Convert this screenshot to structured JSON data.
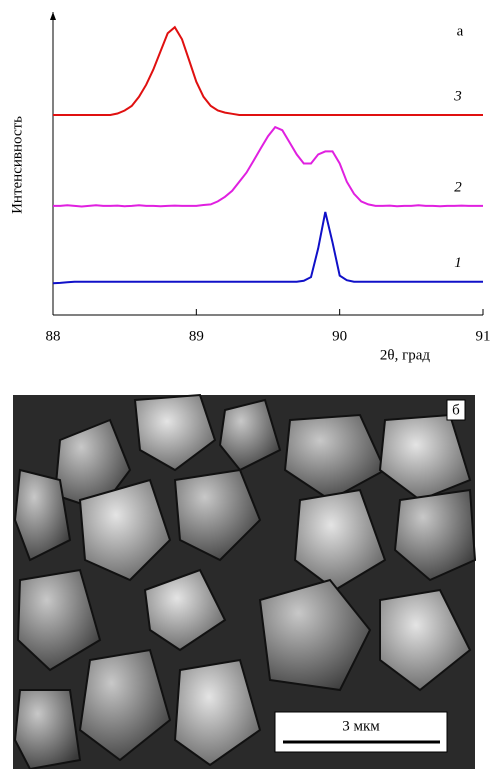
{
  "chart_data": {
    "type": "line",
    "panel_label": "а",
    "y_label": "Интенсивность",
    "x_label": "2θ, град",
    "x": [
      88.0,
      88.05,
      88.1,
      88.15,
      88.2,
      88.25,
      88.3,
      88.35,
      88.4,
      88.45,
      88.5,
      88.55,
      88.6,
      88.65,
      88.7,
      88.75,
      88.8,
      88.85,
      88.9,
      88.95,
      89.0,
      89.05,
      89.1,
      89.15,
      89.2,
      89.25,
      89.3,
      89.35,
      89.4,
      89.45,
      89.5,
      89.55,
      89.6,
      89.65,
      89.7,
      89.75,
      89.8,
      89.85,
      89.9,
      89.95,
      90.0,
      90.05,
      90.1,
      90.15,
      90.2,
      90.25,
      90.3,
      90.35,
      90.4,
      90.45,
      90.5,
      90.55,
      90.6,
      90.65,
      90.7,
      90.75,
      90.8,
      90.85,
      90.9,
      90.95,
      91.0
    ],
    "series": [
      {
        "name": "1",
        "color": "#1010c8",
        "values": [
          10.5,
          10.6,
          10.8,
          11,
          11,
          11,
          11,
          11,
          11,
          11,
          11,
          11,
          11,
          11,
          11,
          11,
          11,
          11,
          11,
          11,
          11,
          11,
          11,
          11,
          11,
          11,
          11,
          11,
          11,
          11,
          11,
          11,
          11,
          11,
          11,
          11.3,
          12.5,
          22,
          34,
          24,
          13,
          11.5,
          11,
          11,
          11,
          11,
          11,
          11,
          11,
          11,
          11,
          11,
          11,
          11,
          11,
          11,
          11,
          11,
          11,
          11,
          11
        ]
      },
      {
        "name": "2",
        "color": "#e020e0",
        "values": [
          36,
          36,
          36.2,
          36,
          35.8,
          36,
          36.2,
          36,
          36,
          36.1,
          35.9,
          36,
          36.2,
          36,
          36,
          35.9,
          36,
          36.1,
          36,
          36,
          36,
          36.3,
          36.5,
          37.5,
          39,
          41,
          44,
          47,
          51,
          55,
          59,
          62,
          61,
          57,
          53,
          50,
          50,
          53,
          54,
          54,
          50,
          44,
          40,
          37.5,
          36.5,
          36,
          36,
          36.1,
          35.9,
          36,
          36,
          36.2,
          36,
          36,
          35.9,
          36,
          36,
          36.1,
          36,
          36,
          36
        ]
      },
      {
        "name": "3",
        "color": "#e01010",
        "values": [
          66,
          66,
          66,
          66,
          66,
          66,
          66,
          66,
          66,
          66.5,
          67.5,
          69,
          72,
          76,
          81,
          87,
          93,
          95,
          91,
          84,
          77,
          72,
          69,
          67.5,
          66.8,
          66.4,
          66,
          66,
          66,
          66,
          66,
          66,
          66,
          66,
          66,
          66,
          66,
          66,
          66,
          66,
          66,
          66,
          66,
          66,
          66,
          66,
          66,
          66,
          66,
          66,
          66,
          66,
          66,
          66,
          66,
          66,
          66,
          66,
          66,
          66,
          66
        ]
      }
    ],
    "xlim": [
      88,
      91
    ],
    "xticks": [
      88,
      89,
      90,
      91
    ],
    "ylim": [
      0,
      100
    ]
  },
  "panel_b": {
    "label": "б",
    "scale_bar": "3 мкм"
  }
}
